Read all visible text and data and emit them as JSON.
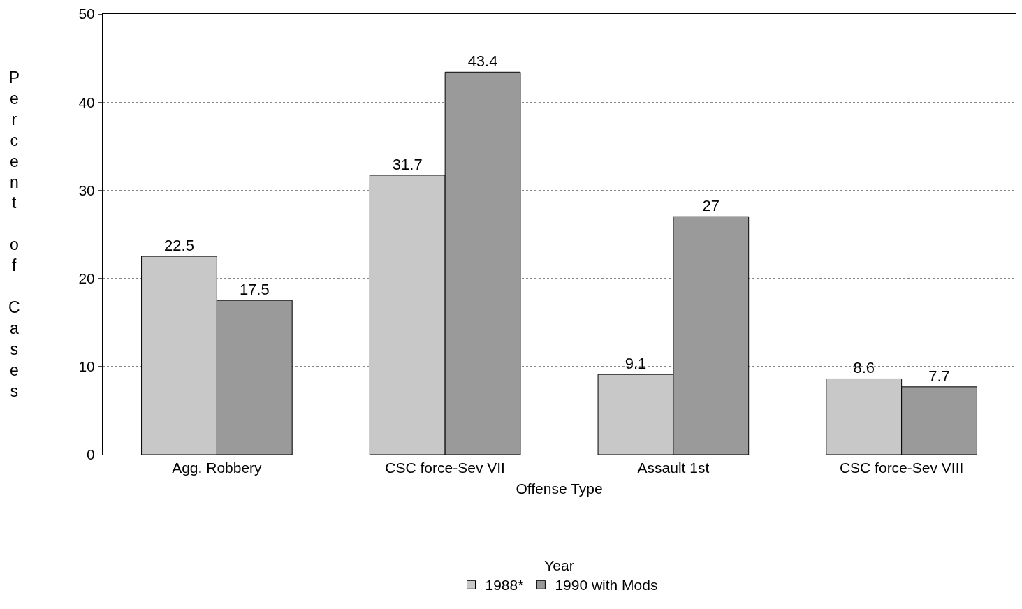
{
  "chart_data": {
    "type": "bar",
    "xlabel": "Offense Type",
    "ylabel": "Percent of Cases",
    "legend_title": "Year",
    "categories": [
      "Agg. Robbery",
      "CSC force-Sev VII",
      "Assault 1st",
      "CSC force-Sev VIII"
    ],
    "series": [
      {
        "name": "1988*",
        "color": "#c8c8c8",
        "values": [
          22.5,
          31.7,
          9.1,
          8.6
        ]
      },
      {
        "name": "1990 with Mods",
        "color": "#9a9a9a",
        "values": [
          17.5,
          43.4,
          27,
          7.7
        ]
      }
    ],
    "ylim": [
      0,
      50
    ],
    "yticks": [
      0,
      10,
      20,
      30,
      40,
      50
    ],
    "grid": "y",
    "legend": "bottom",
    "data_labels": true
  }
}
